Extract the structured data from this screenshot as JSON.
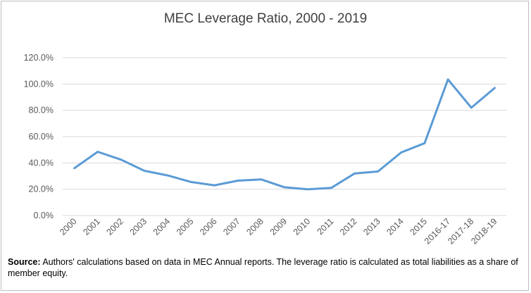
{
  "colors": {
    "line": "#5b9bd5",
    "grid": "#d9d9d9",
    "axis_text": "#595959",
    "title": "#404040"
  },
  "chart_data": {
    "type": "line",
    "title": "MEC Leverage Ratio, 2000 - 2019",
    "categories": [
      "2000",
      "2001",
      "2002",
      "2003",
      "2004",
      "2005",
      "2006",
      "2007",
      "2008",
      "2009",
      "2010",
      "2011",
      "2012",
      "2013",
      "2014",
      "2015",
      "2016-17",
      "2017-18",
      "2018-19"
    ],
    "series": [
      {
        "name": "MEC Leverage Ratio",
        "values": [
          36.0,
          48.5,
          42.5,
          34.0,
          30.5,
          25.5,
          23.0,
          26.5,
          27.5,
          21.5,
          20.0,
          21.0,
          32.0,
          33.5,
          48.0,
          55.0,
          103.5,
          82.0,
          97.0
        ]
      }
    ],
    "ylim": [
      0,
      120
    ],
    "yticks": [
      0,
      20,
      40,
      60,
      80,
      100,
      120
    ],
    "ytick_labels": [
      "0.0%",
      "20.0%",
      "40.0%",
      "60.0%",
      "80.0%",
      "100.0%",
      "120.0%"
    ],
    "grid": true,
    "xlabel": "",
    "ylabel": ""
  },
  "note": {
    "label": "Source:",
    "text": " Authors' calculations based on data in MEC Annual reports. The leverage ratio is calculated as total liabilities as a share of member equity."
  }
}
